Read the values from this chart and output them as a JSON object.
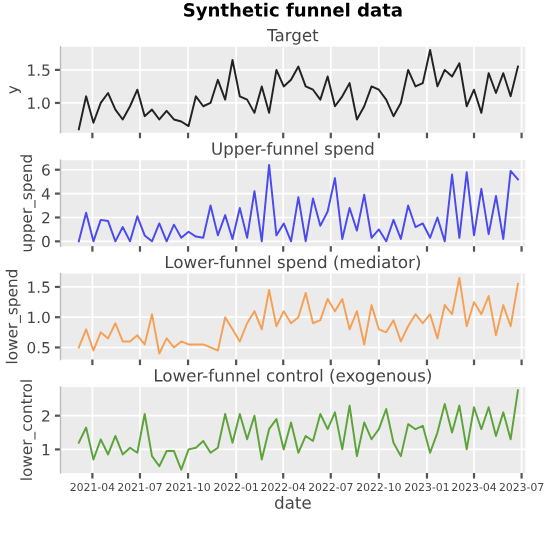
{
  "chart_data": [
    {
      "type": "line",
      "title": "Synthetic funnel data",
      "subtitle": "Target",
      "ylabel": "y",
      "tick_labels": "y",
      "grid": true,
      "x": [
        "2021-03-06",
        "2021-03-20",
        "2021-04-03",
        "2021-04-17",
        "2021-05-01",
        "2021-05-15",
        "2021-05-29",
        "2021-06-12",
        "2021-06-26",
        "2021-07-10",
        "2021-07-24",
        "2021-08-07",
        "2021-08-21",
        "2021-09-04",
        "2021-09-18",
        "2021-10-02",
        "2021-10-16",
        "2021-10-30",
        "2021-11-13",
        "2021-11-27",
        "2021-12-11",
        "2021-12-25",
        "2022-01-08",
        "2022-01-22",
        "2022-02-05",
        "2022-02-19",
        "2022-03-05",
        "2022-03-19",
        "2022-04-02",
        "2022-04-16",
        "2022-04-30",
        "2022-05-14",
        "2022-05-28",
        "2022-06-11",
        "2022-06-25",
        "2022-07-09",
        "2022-07-23",
        "2022-08-06",
        "2022-08-20",
        "2022-09-03",
        "2022-09-17",
        "2022-10-01",
        "2022-10-15",
        "2022-10-29",
        "2022-11-12",
        "2022-11-26",
        "2022-12-10",
        "2022-12-24",
        "2023-01-07",
        "2023-01-21",
        "2023-02-04",
        "2023-02-18",
        "2023-03-04",
        "2023-03-18",
        "2023-04-01",
        "2023-04-15",
        "2023-04-29",
        "2023-05-13",
        "2023-05-27",
        "2023-06-10",
        "2023-06-24"
      ],
      "xlim": [
        "2021-01-30",
        "2023-07-08"
      ],
      "xticks": [
        {
          "value": "2021-04-01",
          "label": null
        },
        {
          "value": "2021-07-01",
          "label": null
        },
        {
          "value": "2021-10-01",
          "label": null
        },
        {
          "value": "2022-01-01",
          "label": null
        },
        {
          "value": "2022-04-01",
          "label": null
        },
        {
          "value": "2022-07-01",
          "label": null
        },
        {
          "value": "2022-10-01",
          "label": null
        },
        {
          "value": "2023-01-01",
          "label": null
        },
        {
          "value": "2023-04-01",
          "label": null
        },
        {
          "value": "2023-07-01",
          "label": null
        }
      ],
      "ylim": [
        0.55,
        1.85
      ],
      "yticks": [
        {
          "value": 1.0,
          "label": "1.0"
        },
        1.5
      ],
      "series": [
        {
          "color": "#222222",
          "values": [
            0.6,
            1.1,
            0.7,
            1.0,
            1.15,
            0.9,
            0.75,
            0.95,
            1.2,
            0.8,
            0.9,
            0.75,
            0.88,
            0.75,
            0.72,
            0.65,
            1.1,
            0.95,
            1.0,
            1.35,
            1.05,
            1.65,
            1.1,
            1.05,
            0.85,
            1.25,
            0.85,
            1.5,
            1.25,
            1.35,
            1.55,
            1.25,
            1.2,
            1.05,
            1.4,
            0.95,
            1.1,
            1.3,
            0.75,
            0.95,
            1.25,
            1.2,
            1.05,
            0.8,
            1.0,
            1.5,
            1.25,
            1.3,
            1.8,
            1.25,
            1.5,
            1.4,
            1.6,
            0.95,
            1.2,
            0.85,
            1.45,
            1.15,
            1.45,
            1.1,
            1.55
          ]
        }
      ]
    },
    {
      "type": "line",
      "title": "Upper-funnel spend",
      "ylabel": "upper_spend",
      "tick_labels": "y",
      "grid": true,
      "x": [
        "2021-03-06",
        "2021-03-20",
        "2021-04-03",
        "2021-04-17",
        "2021-05-01",
        "2021-05-15",
        "2021-05-29",
        "2021-06-12",
        "2021-06-26",
        "2021-07-10",
        "2021-07-24",
        "2021-08-07",
        "2021-08-21",
        "2021-09-04",
        "2021-09-18",
        "2021-10-02",
        "2021-10-16",
        "2021-10-30",
        "2021-11-13",
        "2021-11-27",
        "2021-12-11",
        "2021-12-25",
        "2022-01-08",
        "2022-01-22",
        "2022-02-05",
        "2022-02-19",
        "2022-03-05",
        "2022-03-19",
        "2022-04-02",
        "2022-04-16",
        "2022-04-30",
        "2022-05-14",
        "2022-05-28",
        "2022-06-11",
        "2022-06-25",
        "2022-07-09",
        "2022-07-23",
        "2022-08-06",
        "2022-08-20",
        "2022-09-03",
        "2022-09-17",
        "2022-10-01",
        "2022-10-15",
        "2022-10-29",
        "2022-11-12",
        "2022-11-26",
        "2022-12-10",
        "2022-12-24",
        "2023-01-07",
        "2023-01-21",
        "2023-02-04",
        "2023-02-18",
        "2023-03-04",
        "2023-03-18",
        "2023-04-01",
        "2023-04-15",
        "2023-04-29",
        "2023-05-13",
        "2023-05-27",
        "2023-06-10",
        "2023-06-24"
      ],
      "xlim": [
        "2021-01-30",
        "2023-07-08"
      ],
      "xticks": [
        {
          "value": "2021-04-01",
          "label": null
        },
        {
          "value": "2021-07-01",
          "label": null
        },
        {
          "value": "2021-10-01",
          "label": null
        },
        {
          "value": "2022-01-01",
          "label": null
        },
        {
          "value": "2022-04-01",
          "label": null
        },
        {
          "value": "2022-07-01",
          "label": null
        },
        {
          "value": "2022-10-01",
          "label": null
        },
        {
          "value": "2023-01-01",
          "label": null
        },
        {
          "value": "2023-04-01",
          "label": null
        },
        {
          "value": "2023-07-01",
          "label": null
        }
      ],
      "ylim": [
        -0.4,
        6.8
      ],
      "yticks": [
        0,
        2,
        4,
        6
      ],
      "series": [
        {
          "color": "#4a4af0",
          "values": [
            0,
            2.4,
            0,
            1.8,
            1.7,
            0,
            1.2,
            0,
            2.1,
            0.5,
            0,
            1.5,
            0,
            1.4,
            0.3,
            0.8,
            0.4,
            0.3,
            3.0,
            0.5,
            2.2,
            0.2,
            2.8,
            0.3,
            4.2,
            0,
            6.4,
            0.5,
            1.5,
            0,
            3.7,
            0,
            3.6,
            1.3,
            2.5,
            5.3,
            0.2,
            2.8,
            0.9,
            3.9,
            0.3,
            1.0,
            0,
            1.8,
            0.2,
            3.0,
            1.2,
            1.5,
            0.3,
            2.0,
            0,
            5.6,
            0.3,
            5.8,
            0.5,
            4.4,
            0.6,
            3.8,
            0.2,
            5.9,
            5.2
          ]
        }
      ]
    },
    {
      "type": "line",
      "title": "Lower-funnel spend (mediator)",
      "ylabel": "lower_spend",
      "tick_labels": "y",
      "grid": true,
      "x": [
        "2021-03-06",
        "2021-03-20",
        "2021-04-03",
        "2021-04-17",
        "2021-05-01",
        "2021-05-15",
        "2021-05-29",
        "2021-06-12",
        "2021-06-26",
        "2021-07-10",
        "2021-07-24",
        "2021-08-07",
        "2021-08-21",
        "2021-09-04",
        "2021-09-18",
        "2021-10-02",
        "2021-10-16",
        "2021-10-30",
        "2021-11-13",
        "2021-11-27",
        "2021-12-11",
        "2021-12-25",
        "2022-01-08",
        "2022-01-22",
        "2022-02-05",
        "2022-02-19",
        "2022-03-05",
        "2022-03-19",
        "2022-04-02",
        "2022-04-16",
        "2022-04-30",
        "2022-05-14",
        "2022-05-28",
        "2022-06-11",
        "2022-06-25",
        "2022-07-09",
        "2022-07-23",
        "2022-08-06",
        "2022-08-20",
        "2022-09-03",
        "2022-09-17",
        "2022-10-01",
        "2022-10-15",
        "2022-10-29",
        "2022-11-12",
        "2022-11-26",
        "2022-12-10",
        "2022-12-24",
        "2023-01-07",
        "2023-01-21",
        "2023-02-04",
        "2023-02-18",
        "2023-03-04",
        "2023-03-18",
        "2023-04-01",
        "2023-04-15",
        "2023-04-29",
        "2023-05-13",
        "2023-05-27",
        "2023-06-10",
        "2023-06-24"
      ],
      "xlim": [
        "2021-01-30",
        "2023-07-08"
      ],
      "xticks": [
        {
          "value": "2021-04-01",
          "label": null
        },
        {
          "value": "2021-07-01",
          "label": null
        },
        {
          "value": "2021-10-01",
          "label": null
        },
        {
          "value": "2022-01-01",
          "label": null
        },
        {
          "value": "2022-04-01",
          "label": null
        },
        {
          "value": "2022-07-01",
          "label": null
        },
        {
          "value": "2022-10-01",
          "label": null
        },
        {
          "value": "2023-01-01",
          "label": null
        },
        {
          "value": "2023-04-01",
          "label": null
        },
        {
          "value": "2023-07-01",
          "label": null
        }
      ],
      "ylim": [
        0.3,
        1.72
      ],
      "yticks": [
        0.5,
        {
          "value": 1.0,
          "label": "1.0"
        },
        1.5
      ],
      "series": [
        {
          "color": "#f5a055",
          "values": [
            0.5,
            0.8,
            0.45,
            0.75,
            0.65,
            0.9,
            0.6,
            0.6,
            0.7,
            0.55,
            1.05,
            0.4,
            0.65,
            0.5,
            0.6,
            0.55,
            0.55,
            0.55,
            0.5,
            0.45,
            1.0,
            0.8,
            0.6,
            0.9,
            1.1,
            0.8,
            1.45,
            0.85,
            1.1,
            0.9,
            1.0,
            1.4,
            0.9,
            0.95,
            1.3,
            1.1,
            1.3,
            0.8,
            1.1,
            0.55,
            1.2,
            0.8,
            0.75,
            0.95,
            0.6,
            0.85,
            1.05,
            0.9,
            1.05,
            0.65,
            1.2,
            1.05,
            1.65,
            0.85,
            1.25,
            1.05,
            1.35,
            0.7,
            1.2,
            0.85,
            1.55
          ]
        }
      ]
    },
    {
      "type": "line",
      "title": "Lower-funnel control (exogenous)",
      "xlabel": "date",
      "ylabel": "lower_control",
      "grid": true,
      "x": [
        "2021-03-06",
        "2021-03-20",
        "2021-04-03",
        "2021-04-17",
        "2021-05-01",
        "2021-05-15",
        "2021-05-29",
        "2021-06-12",
        "2021-06-26",
        "2021-07-10",
        "2021-07-24",
        "2021-08-07",
        "2021-08-21",
        "2021-09-04",
        "2021-09-18",
        "2021-10-02",
        "2021-10-16",
        "2021-10-30",
        "2021-11-13",
        "2021-11-27",
        "2021-12-11",
        "2021-12-25",
        "2022-01-08",
        "2022-01-22",
        "2022-02-05",
        "2022-02-19",
        "2022-03-05",
        "2022-03-19",
        "2022-04-02",
        "2022-04-16",
        "2022-04-30",
        "2022-05-14",
        "2022-05-28",
        "2022-06-11",
        "2022-06-25",
        "2022-07-09",
        "2022-07-23",
        "2022-08-06",
        "2022-08-20",
        "2022-09-03",
        "2022-09-17",
        "2022-10-01",
        "2022-10-15",
        "2022-10-29",
        "2022-11-12",
        "2022-11-26",
        "2022-12-10",
        "2022-12-24",
        "2023-01-07",
        "2023-01-21",
        "2023-02-04",
        "2023-02-18",
        "2023-03-04",
        "2023-03-18",
        "2023-04-01",
        "2023-04-15",
        "2023-04-29",
        "2023-05-13",
        "2023-05-27",
        "2023-06-10",
        "2023-06-24"
      ],
      "xlim": [
        "2021-01-30",
        "2023-07-08"
      ],
      "xticks": [
        {
          "value": "2021-04-01",
          "label": "2021-04"
        },
        {
          "value": "2021-07-01",
          "label": "2021-07"
        },
        {
          "value": "2021-10-01",
          "label": "2021-10"
        },
        {
          "value": "2022-01-01",
          "label": "2022-01"
        },
        {
          "value": "2022-04-01",
          "label": "2022-04"
        },
        {
          "value": "2022-07-01",
          "label": "2022-07"
        },
        {
          "value": "2022-10-01",
          "label": "2022-10"
        },
        {
          "value": "2023-01-01",
          "label": "2023-01"
        },
        {
          "value": "2023-04-01",
          "label": "2023-04"
        },
        {
          "value": "2023-07-01",
          "label": "2023-07"
        }
      ],
      "ylim": [
        0.3,
        2.85
      ],
      "yticks": [
        1,
        2
      ],
      "series": [
        {
          "color": "#5ca33a",
          "values": [
            1.2,
            1.65,
            0.7,
            1.3,
            0.85,
            1.4,
            0.85,
            1.05,
            0.9,
            2.05,
            0.8,
            0.5,
            0.95,
            0.95,
            0.4,
            1.0,
            1.05,
            1.25,
            0.9,
            1.05,
            2.05,
            1.2,
            2.05,
            1.3,
            2.0,
            0.7,
            1.6,
            1.9,
            1.0,
            1.8,
            0.9,
            1.4,
            1.25,
            2.05,
            1.6,
            2.1,
            1.0,
            2.3,
            0.8,
            1.8,
            1.3,
            1.6,
            2.2,
            1.2,
            0.8,
            1.75,
            1.6,
            1.7,
            0.9,
            1.5,
            2.35,
            1.5,
            2.3,
            1.0,
            2.25,
            1.6,
            2.25,
            1.4,
            2.1,
            1.3,
            2.75
          ]
        }
      ]
    }
  ]
}
